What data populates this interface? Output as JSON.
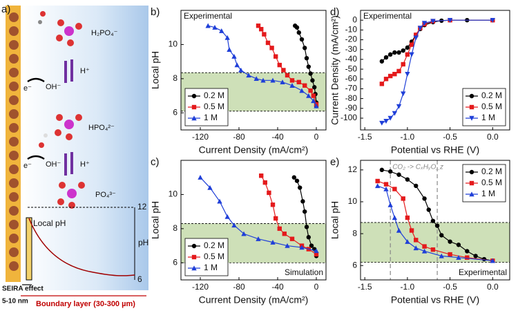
{
  "diagram": {
    "panel_label": "a)",
    "species": [
      "H₂PO₄⁻",
      "HPO₄²⁻",
      "PO₄³⁻"
    ],
    "protons": [
      "H⁺",
      "H⁺"
    ],
    "electrons": [
      "e⁻",
      "e⁻"
    ],
    "hydroxides": [
      "OH⁻",
      "OH⁻"
    ],
    "local_ph": "Local pH",
    "ph_label": "pH",
    "ph_ticks": [
      12,
      6
    ],
    "seira": "SEIRA effect",
    "seira_range": "5-10 nm",
    "boundary": "Boundary layer (30-300 µm)"
  },
  "chart_data": [
    {
      "type": "line",
      "panel_label": "b)",
      "note": "Experimental",
      "note_corner": "upper left",
      "xlabel": "Current Density (mA/cm²)",
      "ylabel": "Local pH",
      "xlim": [
        -140,
        10
      ],
      "ylim": [
        5,
        12
      ],
      "xticks": [
        -120,
        -80,
        -40,
        0
      ],
      "yticks": [
        6,
        8,
        10
      ],
      "hlines": [
        8.35,
        6.1
      ],
      "shade": true,
      "shade_color": "#c5dbab",
      "legend": "lower left",
      "series": [
        {
          "name": "0.2 M",
          "color": "#000000",
          "marker": "circle",
          "x": [
            -22,
            -20,
            -18,
            -15,
            -12,
            -10,
            -8,
            -6,
            -4,
            -2,
            -1,
            0,
            0
          ],
          "values": [
            11.1,
            11.0,
            10.7,
            10.3,
            9.8,
            9.2,
            8.7,
            8.3,
            7.9,
            7.5,
            7.1,
            6.6,
            6.4
          ]
        },
        {
          "name": "0.5 M",
          "color": "#e41a1c",
          "marker": "square",
          "x": [
            -60,
            -57,
            -54,
            -50,
            -46,
            -42,
            -38,
            -34,
            -30,
            -25,
            -18,
            -12,
            -6,
            -3,
            0
          ],
          "values": [
            11.1,
            10.9,
            10.6,
            10.1,
            9.8,
            9.3,
            8.8,
            8.5,
            8.2,
            7.9,
            7.8,
            7.6,
            7.3,
            7.0,
            6.5
          ]
        },
        {
          "name": "1 M",
          "color": "#1f3fd8",
          "marker": "triangle-up",
          "x": [
            -112,
            -105,
            -98,
            -92,
            -90,
            -85,
            -82,
            -78,
            -70,
            -62,
            -55,
            -45,
            -35,
            -25,
            -15,
            -8,
            -3,
            0
          ],
          "values": [
            11.1,
            11.0,
            10.8,
            10.4,
            9.7,
            9.3,
            8.8,
            8.5,
            8.2,
            8.0,
            7.9,
            7.9,
            7.8,
            7.6,
            7.3,
            7.0,
            6.7,
            6.4
          ]
        }
      ]
    },
    {
      "type": "line",
      "panel_label": "c)",
      "note": "Simulation",
      "note_corner": "lower right",
      "xlabel": "Current Density (mA/cm²)",
      "ylabel": "Local pH",
      "xlim": [
        -140,
        10
      ],
      "ylim": [
        5,
        12
      ],
      "xticks": [
        -120,
        -80,
        -40,
        0
      ],
      "yticks": [
        6,
        8,
        10
      ],
      "hlines": [
        8.3,
        6.0
      ],
      "shade": true,
      "shade_color": "#c5dbab",
      "legend": "lower left",
      "series": [
        {
          "name": "0.2 M",
          "color": "#000000",
          "marker": "circle",
          "x": [
            -23,
            -20,
            -17,
            -14,
            -12,
            -10,
            -8,
            -5,
            -2,
            0
          ],
          "values": [
            11.0,
            10.8,
            10.4,
            9.6,
            9.0,
            8.1,
            7.5,
            7.0,
            6.8,
            6.4
          ]
        },
        {
          "name": "0.5 M",
          "color": "#e41a1c",
          "marker": "square",
          "x": [
            -57,
            -53,
            -49,
            -45,
            -42,
            -38,
            -33,
            -25,
            -15,
            -8,
            0
          ],
          "values": [
            11.1,
            10.7,
            10.1,
            9.4,
            8.6,
            8.0,
            7.7,
            7.4,
            7.0,
            6.8,
            6.5
          ]
        },
        {
          "name": "1 M",
          "color": "#1f3fd8",
          "marker": "triangle-up",
          "x": [
            -120,
            -110,
            -100,
            -92,
            -85,
            -75,
            -60,
            -45,
            -30,
            -15,
            0
          ],
          "values": [
            11.0,
            10.4,
            9.6,
            8.7,
            8.2,
            7.7,
            7.4,
            7.2,
            7.0,
            6.9,
            6.7
          ]
        }
      ]
    },
    {
      "type": "line",
      "panel_label": "d)",
      "note": "Experimental",
      "note_corner": "upper left",
      "xlabel": "Potential vs RHE (V)",
      "ylabel": "Current Density (mA/cm²)",
      "xlim": [
        -1.55,
        0.2
      ],
      "ylim": [
        -112,
        10
      ],
      "xticks": [
        -1.5,
        {
          "value": -1.0,
          "label": "-1.0"
        },
        -0.5,
        {
          "value": 0,
          "label": "0.0"
        }
      ],
      "yticks": [
        -100,
        -90,
        -80,
        -70,
        -60,
        -50,
        -40,
        -30,
        -20,
        -10,
        0
      ],
      "hlines": [],
      "shade": false,
      "legend": "lower right",
      "series": [
        {
          "name": "0.2 M",
          "color": "#000000",
          "marker": "circle",
          "x": [
            -1.3,
            -1.25,
            -1.2,
            -1.15,
            -1.1,
            -1.05,
            -1.0,
            -0.95,
            -0.9,
            -0.85,
            -0.8,
            -0.7,
            -0.6,
            -0.5,
            -0.3,
            0
          ],
          "values": [
            -42,
            -38,
            -35,
            -33,
            -33,
            -31,
            -28,
            -22,
            -15,
            -9,
            -5,
            -2,
            -0.5,
            0,
            0,
            0
          ]
        },
        {
          "name": "0.5 M",
          "color": "#e41a1c",
          "marker": "square",
          "x": [
            -1.3,
            -1.25,
            -1.2,
            -1.15,
            -1.1,
            -1.05,
            -1.0,
            -0.95,
            -0.9,
            -0.85,
            -0.8,
            -0.7,
            -0.5,
            0
          ],
          "values": [
            -65,
            -60,
            -57,
            -55,
            -52,
            -45,
            -35,
            -25,
            -15,
            -8,
            -4,
            -1,
            0,
            0
          ]
        },
        {
          "name": "1 M",
          "color": "#1f3fd8",
          "marker": "triangle-down",
          "x": [
            -1.3,
            -1.25,
            -1.2,
            -1.15,
            -1.1,
            -1.05,
            -1.0,
            -0.95,
            -0.9,
            -0.85,
            -0.8,
            -0.7,
            -0.5,
            0
          ],
          "values": [
            -105,
            -103,
            -100,
            -95,
            -88,
            -75,
            -55,
            -35,
            -18,
            -8,
            -3,
            -1,
            0,
            0
          ]
        }
      ]
    },
    {
      "type": "line",
      "panel_label": "e)",
      "note": "Experimental",
      "note_corner": "lower right",
      "annotation": "CO₂ -> CₓHᵧO_z",
      "xlabel": "Potential vs RHE (V)",
      "ylabel": "Local pH",
      "xlim": [
        -1.55,
        0.2
      ],
      "ylim": [
        5.1,
        12.6
      ],
      "xticks": [
        -1.5,
        {
          "value": -1.0,
          "label": "-1.0"
        },
        -0.5,
        {
          "value": 0,
          "label": "0.0"
        }
      ],
      "yticks": [
        6,
        8,
        10,
        12
      ],
      "hlines": [
        8.7,
        6.2
      ],
      "vlines": [
        -1.2,
        -0.65
      ],
      "shade": true,
      "shade_color": "#c5dbab",
      "legend": "upper right",
      "series": [
        {
          "name": "0.2 M",
          "color": "#000000",
          "marker": "circle",
          "x": [
            -1.3,
            -1.2,
            -1.1,
            -1.0,
            -0.9,
            -0.8,
            -0.75,
            -0.7,
            -0.65,
            -0.6,
            -0.5,
            -0.4,
            -0.3,
            -0.2,
            -0.1,
            0
          ],
          "values": [
            12.0,
            11.9,
            11.7,
            11.4,
            11.0,
            10.2,
            9.5,
            8.8,
            8.5,
            7.9,
            7.5,
            7.3,
            6.9,
            6.6,
            6.4,
            6.3
          ]
        },
        {
          "name": "0.5 M",
          "color": "#e41a1c",
          "marker": "square",
          "x": [
            -1.35,
            -1.25,
            -1.15,
            -1.05,
            -1.0,
            -0.95,
            -0.9,
            -0.8,
            -0.7,
            -0.5,
            -0.3,
            0
          ],
          "values": [
            11.3,
            11.1,
            10.8,
            10.2,
            9.0,
            8.2,
            7.6,
            7.2,
            7.0,
            6.7,
            6.5,
            6.3
          ]
        },
        {
          "name": "1 M",
          "color": "#1f3fd8",
          "marker": "triangle-up",
          "x": [
            -1.35,
            -1.25,
            -1.2,
            -1.15,
            -1.1,
            -1.0,
            -0.9,
            -0.8,
            -0.6,
            -0.4,
            0
          ],
          "values": [
            11.0,
            10.8,
            9.8,
            9.0,
            8.2,
            7.5,
            7.1,
            6.9,
            6.6,
            6.5,
            6.3
          ]
        }
      ]
    }
  ]
}
